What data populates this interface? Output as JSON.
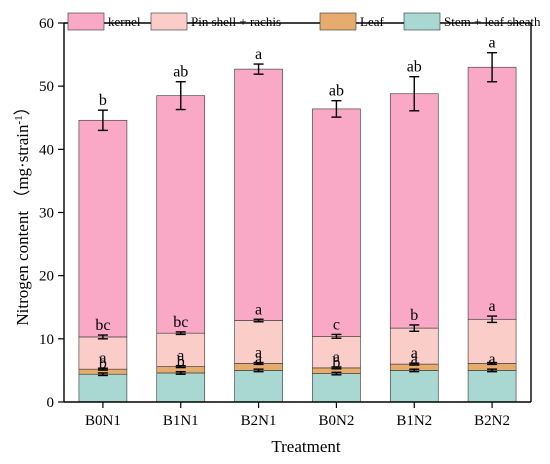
{
  "chart_data": {
    "type": "bar",
    "stacked": true,
    "xlabel": "Treatment",
    "ylabel": "Nitrogen content （mg·strain⁻¹）",
    "ylabel_main": "Nitrogen content （mg·strain",
    "ylabel_sup": "-1",
    "ylabel_close": "）",
    "ylim": [
      0,
      60
    ],
    "yticks": [
      0,
      10,
      20,
      30,
      40,
      50,
      60
    ],
    "categories": [
      "B0N1",
      "B1N1",
      "B2N1",
      "B0N2",
      "B1N2",
      "B2N2"
    ],
    "legend_position": "top",
    "series": [
      {
        "name": "Stem + leaf sheath",
        "color": "#a8d8d1",
        "values": [
          4.4,
          4.6,
          5.0,
          4.5,
          5.0,
          5.0
        ],
        "errors": [
          0.2,
          0.2,
          0.2,
          0.2,
          0.2,
          0.2
        ],
        "letters": [
          "b",
          "b",
          "a",
          "b",
          "a",
          "a"
        ]
      },
      {
        "name": "Leaf",
        "color": "#e5ac6e",
        "values": [
          0.8,
          1.0,
          1.1,
          0.9,
          1.0,
          1.1
        ],
        "errors": [
          0.15,
          0.15,
          0.15,
          0.15,
          0.15,
          0.15
        ],
        "letters": [
          "a",
          "a",
          "a",
          "a",
          "a",
          ""
        ]
      },
      {
        "name": "Pin shell + rachis",
        "color": "#fbcdc9",
        "values": [
          5.1,
          5.3,
          6.8,
          5.0,
          5.7,
          7.0
        ],
        "errors": [
          0.3,
          0.2,
          0.2,
          0.3,
          0.5,
          0.5
        ],
        "letters": [
          "bc",
          "bc",
          "a",
          "c",
          "b",
          "a"
        ]
      },
      {
        "name": "kernel",
        "color": "#f9a8c6",
        "values": [
          34.3,
          37.6,
          39.8,
          36.0,
          37.1,
          39.9
        ],
        "errors": [
          1.6,
          2.2,
          0.8,
          1.3,
          2.7,
          2.3
        ],
        "letters": [
          "b",
          "ab",
          "a",
          "ab",
          "ab",
          "a"
        ]
      }
    ],
    "legend_order": [
      "kernel",
      "Pin shell + rachis",
      "Leaf",
      "Stem + leaf sheath"
    ]
  }
}
